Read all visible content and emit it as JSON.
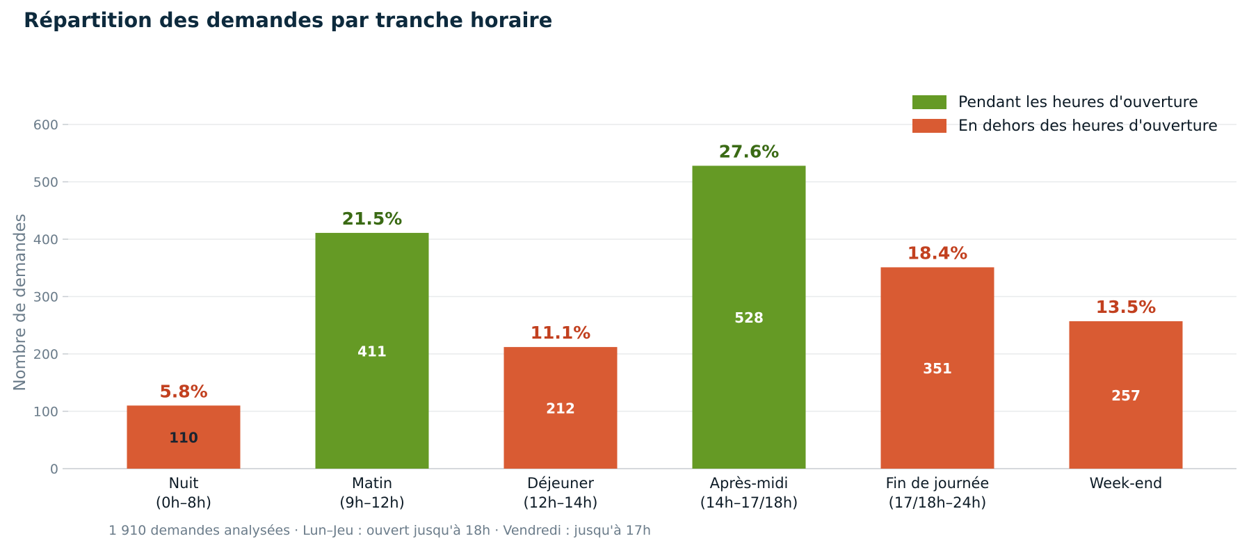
{
  "title": "Répartition des demandes par tranche horaire",
  "footnote": "1 910 demandes analysées  ·  Lun–Jeu : ouvert jusqu'à 18h  ·  Vendredi : jusqu'à 17h",
  "colors": {
    "open": "#659a25",
    "closed": "#d95b33",
    "open_pct": "#3a6a14",
    "closed_pct": "#c2401f",
    "axis_text": "#6b7c8a",
    "grid": "#e8eaec",
    "category_text": "#0d1b26"
  },
  "legend": [
    {
      "label": "Pendant les heures d'ouverture",
      "color_key": "open"
    },
    {
      "label": "En dehors des heures d'ouverture",
      "color_key": "closed"
    }
  ],
  "chart_data": {
    "type": "bar",
    "ylabel": "Nombre de demandes",
    "xlabel": "",
    "ylim": [
      0,
      600
    ],
    "yticks": [
      0,
      100,
      200,
      300,
      400,
      500,
      600
    ],
    "grid": true,
    "legend_position": "top-right",
    "categories": [
      [
        "Nuit",
        "(0h–8h)"
      ],
      [
        "Matin",
        "(9h–12h)"
      ],
      [
        "Déjeuner",
        "(12h–14h)"
      ],
      [
        "Après-midi",
        "(14h–17/18h)"
      ],
      [
        "Fin de journée",
        "(17/18h–24h)"
      ],
      [
        "Week-end"
      ]
    ],
    "values": [
      110,
      411,
      212,
      528,
      351,
      257
    ],
    "percent_labels": [
      "5.8%",
      "21.5%",
      "11.1%",
      "27.6%",
      "18.4%",
      "13.5%"
    ],
    "group": [
      "closed",
      "open",
      "closed",
      "open",
      "closed",
      "closed"
    ]
  }
}
